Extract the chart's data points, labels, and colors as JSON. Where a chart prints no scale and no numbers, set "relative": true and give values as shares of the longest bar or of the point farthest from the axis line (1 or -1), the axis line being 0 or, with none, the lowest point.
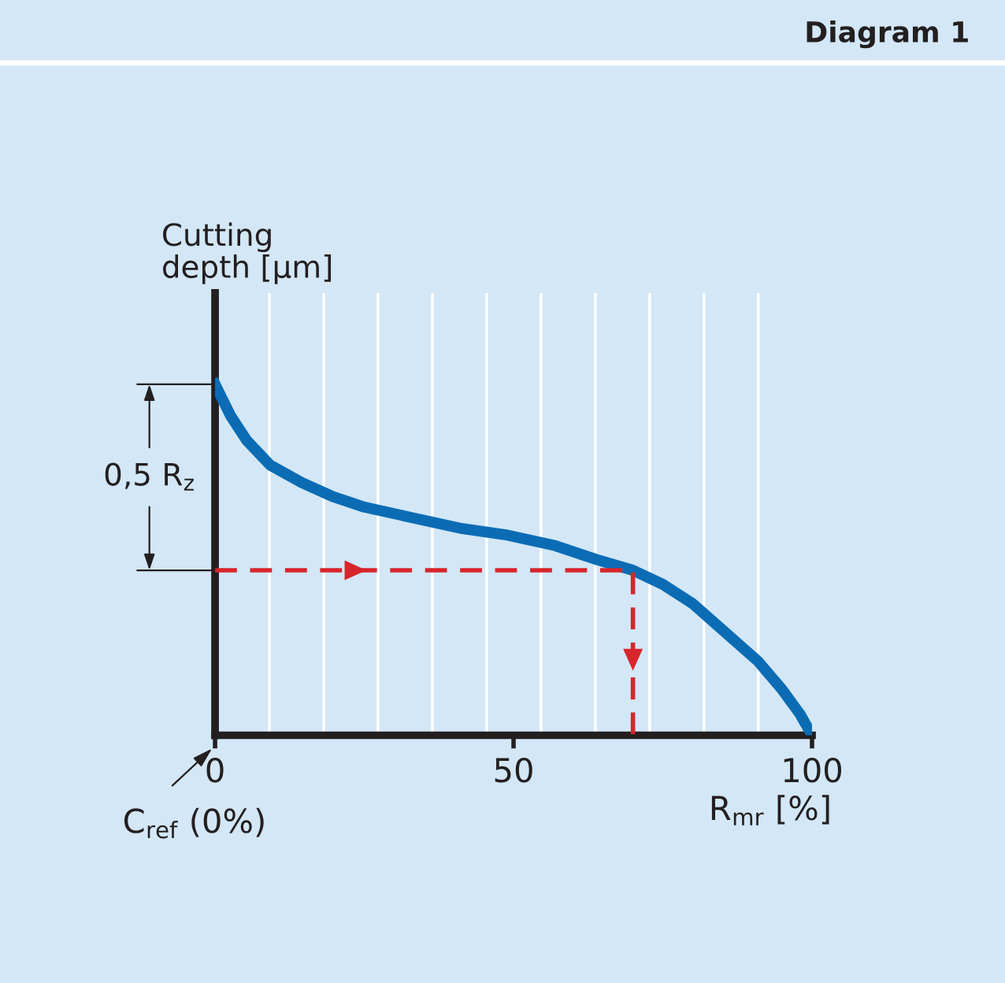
{
  "chart_data": {
    "type": "line",
    "title": "Diagram 1",
    "xlabel": "R$_{mr}$ [%]",
    "ylabel": "Cutting\ndepth [µm]",
    "relative": true,
    "xlim": [
      0,
      100
    ],
    "xticks": [
      0,
      50,
      100,
      {
        "value": 9.1,
        "label": null
      },
      {
        "value": 18.2,
        "label": null
      },
      {
        "value": 27.3,
        "label": null
      },
      {
        "value": 36.4,
        "label": null
      },
      {
        "value": 45.5,
        "label": null
      },
      {
        "value": 54.6,
        "label": null
      },
      {
        "value": 63.7,
        "label": null
      },
      {
        "value": 72.8,
        "label": null
      },
      {
        "value": 81.9,
        "label": null
      },
      {
        "value": 91,
        "label": null
      }
    ],
    "grid": "x",
    "line_style": "solid",
    "marker": "none",
    "annotations": [
      "0,5 R$_{z}$",
      "C$_{ref}$ (0%)"
    ],
    "series": [
      {
        "color": "#0b6cb4",
        "x": [
          0,
          2.6,
          5.3,
          9.2,
          14.5,
          19.7,
          25,
          33,
          41,
          49,
          57,
          64,
          70,
          75,
          80,
          85,
          91,
          95,
          98,
          100
        ],
        "values": [
          1.0,
          0.91,
          0.84,
          0.77,
          0.72,
          0.68,
          0.65,
          0.62,
          0.59,
          0.57,
          0.54,
          0.5,
          0.47,
          0.43,
          0.375,
          0.3,
          0.21,
          0.13,
          0.06,
          0
        ]
      },
      {
        "color": "#d8252b",
        "line_style": "dashed",
        "x": [
          0,
          70,
          70
        ],
        "values": [
          0.47,
          0.47,
          0
        ]
      }
    ]
  }
}
